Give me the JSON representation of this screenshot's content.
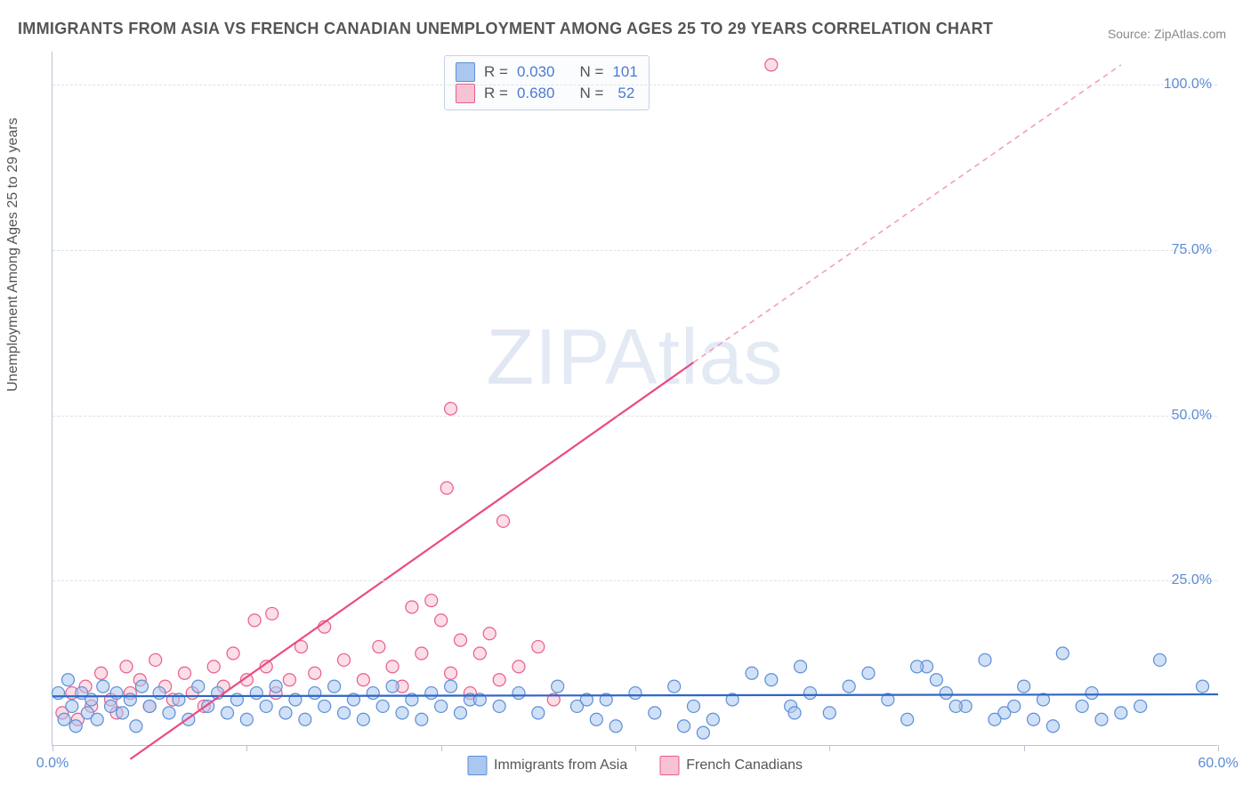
{
  "title": "IMMIGRANTS FROM ASIA VS FRENCH CANADIAN UNEMPLOYMENT AMONG AGES 25 TO 29 YEARS CORRELATION CHART",
  "source": "Source: ZipAtlas.com",
  "y_axis_label": "Unemployment Among Ages 25 to 29 years",
  "watermark": {
    "z": "Z",
    "ip": "IP",
    "rest": "Atlas"
  },
  "chart": {
    "type": "scatter",
    "background_color": "#ffffff",
    "grid_color": "#dce1e8",
    "axis_color": "#b9c4d6",
    "xlim": [
      0,
      60
    ],
    "ylim": [
      0,
      105
    ],
    "yticks": [
      25,
      50,
      75,
      100
    ],
    "ytick_labels": [
      "25.0%",
      "50.0%",
      "75.0%",
      "100.0%"
    ],
    "xticks": [
      0,
      10,
      20,
      30,
      40,
      50,
      60
    ],
    "xtick_labels_shown": {
      "0": "0.0%",
      "60": "60.0%"
    },
    "marker_radius": 7,
    "marker_stroke_width": 1.2,
    "series_blue": {
      "label": "Immigrants from Asia",
      "fill": "#a9c7ef",
      "stroke": "#5c8fd6",
      "fill_opacity": 0.55,
      "trend": {
        "type": "solid",
        "color": "#2f66c4",
        "width": 2.2,
        "y1": 7.5,
        "y2": 7.8
      },
      "points": [
        [
          0.3,
          8
        ],
        [
          0.6,
          4
        ],
        [
          0.8,
          10
        ],
        [
          1.0,
          6
        ],
        [
          1.2,
          3
        ],
        [
          1.5,
          8
        ],
        [
          1.8,
          5
        ],
        [
          2.0,
          7
        ],
        [
          2.3,
          4
        ],
        [
          2.6,
          9
        ],
        [
          3.0,
          6
        ],
        [
          3.3,
          8
        ],
        [
          3.6,
          5
        ],
        [
          4.0,
          7
        ],
        [
          4.3,
          3
        ],
        [
          4.6,
          9
        ],
        [
          5.0,
          6
        ],
        [
          5.5,
          8
        ],
        [
          6.0,
          5
        ],
        [
          6.5,
          7
        ],
        [
          7.0,
          4
        ],
        [
          7.5,
          9
        ],
        [
          8.0,
          6
        ],
        [
          8.5,
          8
        ],
        [
          9.0,
          5
        ],
        [
          9.5,
          7
        ],
        [
          10.0,
          4
        ],
        [
          10.5,
          8
        ],
        [
          11.0,
          6
        ],
        [
          11.5,
          9
        ],
        [
          12.0,
          5
        ],
        [
          12.5,
          7
        ],
        [
          13.0,
          4
        ],
        [
          13.5,
          8
        ],
        [
          14.0,
          6
        ],
        [
          14.5,
          9
        ],
        [
          15.0,
          5
        ],
        [
          15.5,
          7
        ],
        [
          16.0,
          4
        ],
        [
          16.5,
          8
        ],
        [
          17.0,
          6
        ],
        [
          17.5,
          9
        ],
        [
          18.0,
          5
        ],
        [
          18.5,
          7
        ],
        [
          19.0,
          4
        ],
        [
          19.5,
          8
        ],
        [
          20.0,
          6
        ],
        [
          20.5,
          9
        ],
        [
          21.0,
          5
        ],
        [
          21.5,
          7
        ],
        [
          22.0,
          7
        ],
        [
          23.0,
          6
        ],
        [
          24.0,
          8
        ],
        [
          25.0,
          5
        ],
        [
          26.0,
          9
        ],
        [
          27.0,
          6
        ],
        [
          28.0,
          4
        ],
        [
          28.5,
          7
        ],
        [
          29.0,
          3
        ],
        [
          30.0,
          8
        ],
        [
          31.0,
          5
        ],
        [
          32.0,
          9
        ],
        [
          33.0,
          6
        ],
        [
          34.0,
          4
        ],
        [
          35.0,
          7
        ],
        [
          36.0,
          11
        ],
        [
          37.0,
          10
        ],
        [
          38.0,
          6
        ],
        [
          38.5,
          12
        ],
        [
          39.0,
          8
        ],
        [
          40.0,
          5
        ],
        [
          41.0,
          9
        ],
        [
          42.0,
          11
        ],
        [
          43.0,
          7
        ],
        [
          44.0,
          4
        ],
        [
          45.0,
          12
        ],
        [
          45.5,
          10
        ],
        [
          46.0,
          8
        ],
        [
          47.0,
          6
        ],
        [
          48.0,
          13
        ],
        [
          49.0,
          5
        ],
        [
          50.0,
          9
        ],
        [
          50.5,
          4
        ],
        [
          51.0,
          7
        ],
        [
          52.0,
          14
        ],
        [
          53.0,
          6
        ],
        [
          53.5,
          8
        ],
        [
          55.0,
          5
        ],
        [
          57.0,
          13
        ],
        [
          59.2,
          9
        ],
        [
          32.5,
          3
        ],
        [
          33.5,
          2
        ],
        [
          44.5,
          12
        ],
        [
          46.5,
          6
        ],
        [
          48.5,
          4
        ],
        [
          49.5,
          6
        ],
        [
          51.5,
          3
        ],
        [
          54.0,
          4
        ],
        [
          56.0,
          6
        ],
        [
          38.2,
          5
        ],
        [
          27.5,
          7
        ]
      ]
    },
    "series_pink": {
      "label": "French Canadians",
      "fill": "#f7c2d2",
      "stroke": "#ea5d8a",
      "fill_opacity": 0.55,
      "trend_solid": {
        "color": "#e94b81",
        "width": 2.2,
        "x1": 4,
        "y1": -2,
        "x2": 33,
        "y2": 58
      },
      "trend_dashed": {
        "color": "#f19fb8",
        "width": 1.6,
        "dash": "6,5",
        "x1": 33,
        "y1": 58,
        "x2": 55,
        "y2": 103
      },
      "points": [
        [
          0.5,
          5
        ],
        [
          1.0,
          8
        ],
        [
          1.3,
          4
        ],
        [
          1.7,
          9
        ],
        [
          2.0,
          6
        ],
        [
          2.5,
          11
        ],
        [
          3.0,
          7
        ],
        [
          3.3,
          5
        ],
        [
          3.8,
          12
        ],
        [
          4.0,
          8
        ],
        [
          4.5,
          10
        ],
        [
          5.0,
          6
        ],
        [
          5.3,
          13
        ],
        [
          5.8,
          9
        ],
        [
          6.2,
          7
        ],
        [
          6.8,
          11
        ],
        [
          7.2,
          8
        ],
        [
          7.8,
          6
        ],
        [
          8.3,
          12
        ],
        [
          8.8,
          9
        ],
        [
          9.3,
          14
        ],
        [
          10.0,
          10
        ],
        [
          10.4,
          19
        ],
        [
          11.0,
          12
        ],
        [
          11.5,
          8
        ],
        [
          12.2,
          10
        ],
        [
          12.8,
          15
        ],
        [
          13.5,
          11
        ],
        [
          14.0,
          18
        ],
        [
          15.0,
          13
        ],
        [
          16.0,
          10
        ],
        [
          16.8,
          15
        ],
        [
          17.5,
          12
        ],
        [
          18.0,
          9
        ],
        [
          18.5,
          21
        ],
        [
          19.0,
          14
        ],
        [
          19.5,
          22
        ],
        [
          20.0,
          19
        ],
        [
          20.5,
          11
        ],
        [
          21.0,
          16
        ],
        [
          21.5,
          8
        ],
        [
          22.0,
          14
        ],
        [
          22.5,
          17
        ],
        [
          23.0,
          10
        ],
        [
          23.2,
          34
        ],
        [
          24.0,
          12
        ],
        [
          25.0,
          15
        ],
        [
          25.8,
          7
        ],
        [
          20.3,
          39
        ],
        [
          20.5,
          51
        ],
        [
          37.0,
          103
        ],
        [
          11.3,
          20
        ]
      ]
    }
  },
  "stats": {
    "rows": [
      {
        "swatch_fill": "#a9c7ef",
        "swatch_stroke": "#5c8fd6",
        "r_label": "R =",
        "r": "0.030",
        "n_label": "N =",
        "n": "101"
      },
      {
        "swatch_fill": "#f7c2d2",
        "swatch_stroke": "#ea5d8a",
        "r_label": "R =",
        "r": "0.680",
        "n_label": "N =",
        "n": "52"
      }
    ]
  },
  "bottom_legend": [
    {
      "fill": "#a9c7ef",
      "stroke": "#5c8fd6",
      "label": "Immigrants from Asia"
    },
    {
      "fill": "#f7c2d2",
      "stroke": "#ea5d8a",
      "label": "French Canadians"
    }
  ]
}
